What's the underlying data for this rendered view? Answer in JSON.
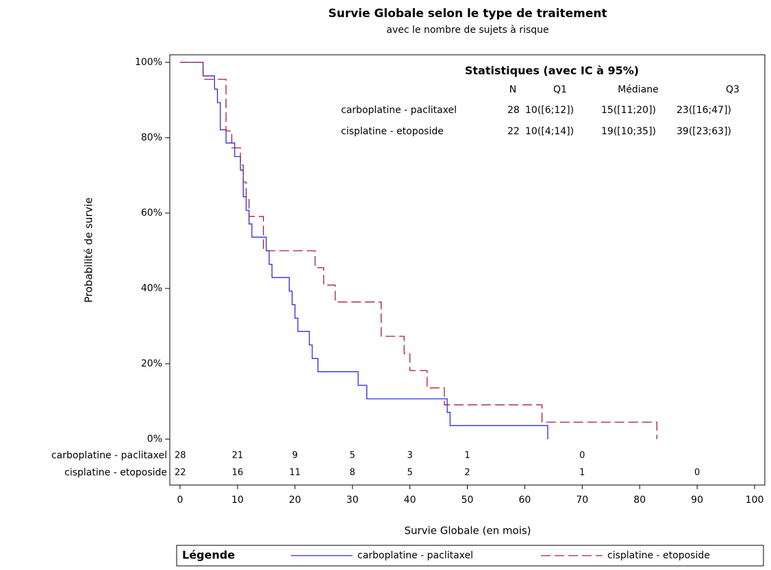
{
  "chart_data": {
    "type": "step",
    "title": "Survie Globale selon le type de traitement",
    "subtitle": "avec le nombre de sujets à risque",
    "x_label": "Survie Globale (en mois)",
    "y_label": "Probabilité de survie",
    "xlim": [
      0,
      100
    ],
    "xticks": [
      0,
      10,
      20,
      30,
      40,
      50,
      60,
      70,
      80,
      90,
      100
    ],
    "ylim": [
      0,
      100
    ],
    "yticks": [
      {
        "value": 0,
        "label": "0%"
      },
      {
        "value": 20,
        "label": "20%"
      },
      {
        "value": 40,
        "label": "40%"
      },
      {
        "value": 60,
        "label": "60%"
      },
      {
        "value": 80,
        "label": "80%"
      },
      {
        "value": 100,
        "label": "100%"
      }
    ],
    "series": [
      {
        "name": "carboplatine - paclitaxel",
        "color": "#2a2ae0",
        "dash": false,
        "x": [
          0,
          4,
          6,
          6.5,
          7,
          8,
          9.5,
          10.5,
          11,
          11.5,
          12,
          12.5,
          15,
          15.5,
          16,
          19,
          19.5,
          20,
          20.5,
          22.5,
          23,
          24,
          31,
          32.5,
          46.5,
          47,
          64
        ],
        "values": [
          100,
          96.4,
          92.9,
          89.3,
          82.1,
          78.6,
          75,
          71.4,
          64.3,
          60.7,
          57.1,
          53.6,
          50,
          46.4,
          42.9,
          39.3,
          35.7,
          32.1,
          28.6,
          25,
          21.4,
          17.9,
          14.3,
          10.7,
          7.1,
          3.6,
          0
        ],
        "at_risk_x": [
          0,
          10,
          20,
          30,
          40,
          50,
          70
        ],
        "at_risk": [
          28,
          21,
          9,
          5,
          3,
          1,
          0
        ]
      },
      {
        "name": "cisplatine - etoposide",
        "color": "#a01c3c",
        "dash": true,
        "x": [
          0,
          4,
          8,
          9,
          10.5,
          11,
          11.5,
          12,
          14.5,
          23.5,
          25,
          27,
          35,
          39,
          40,
          43,
          46,
          63,
          83
        ],
        "values": [
          100,
          95.5,
          81.8,
          77.3,
          72.7,
          68.2,
          63.6,
          59.1,
          50,
          45.5,
          40.9,
          36.4,
          27.3,
          22.7,
          18.2,
          13.6,
          9.1,
          4.5,
          0
        ],
        "at_risk_x": [
          0,
          10,
          20,
          30,
          40,
          50,
          70,
          90
        ],
        "at_risk": [
          22,
          16,
          11,
          8,
          5,
          2,
          1,
          0
        ]
      }
    ],
    "stats": {
      "title": "Statistiques (avec IC à 95%)",
      "header": [
        "N",
        "Q1",
        "Médiane",
        "Q3"
      ],
      "rows": [
        [
          "carboplatine - paclitaxel",
          "28",
          "10([6;12])",
          "15([11;20])",
          "23([16;47])"
        ],
        [
          "cisplatine - etoposide",
          "22",
          "10([4;14])",
          "19([10;35])",
          "39([23;63])"
        ]
      ]
    },
    "legend_title": "Légende"
  }
}
